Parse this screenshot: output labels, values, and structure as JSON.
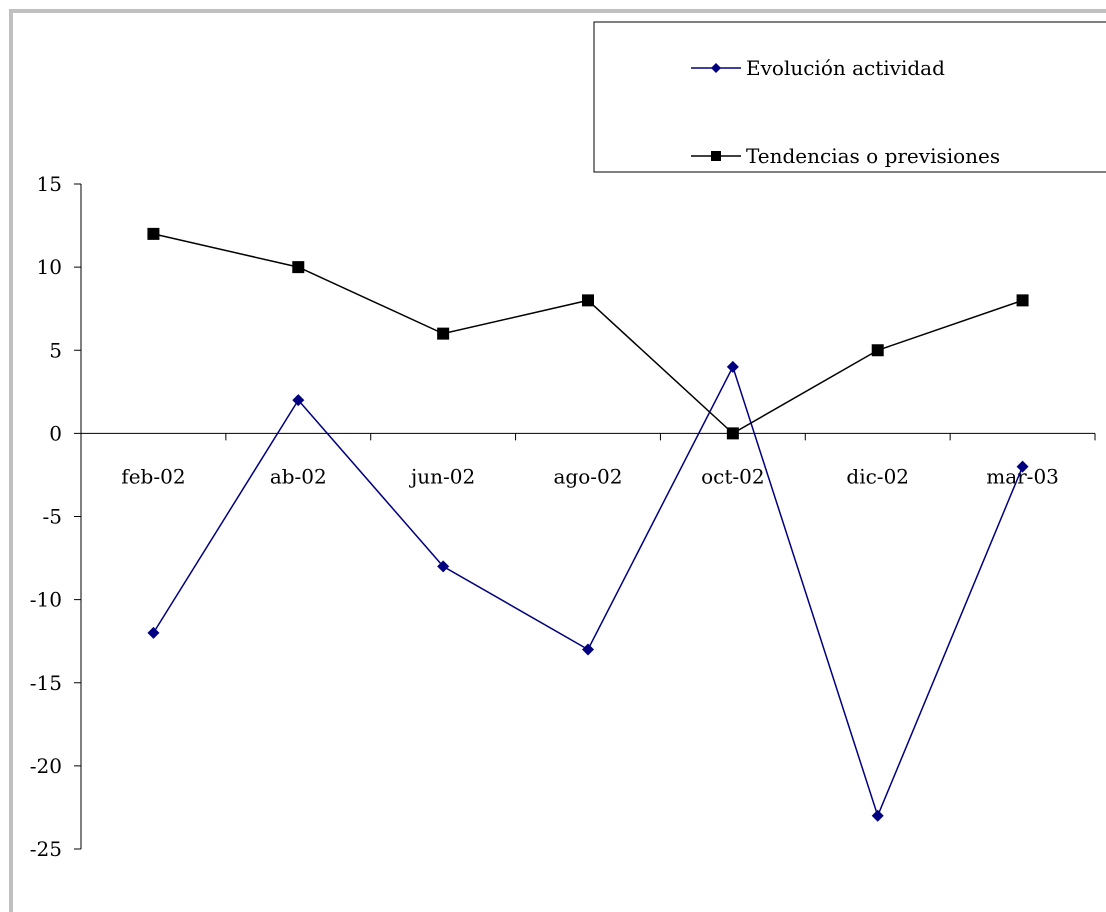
{
  "chart_data": {
    "type": "line",
    "title": "",
    "xlabel": "",
    "ylabel": "",
    "categories": [
      "feb-02",
      "ab-02",
      "jun-02",
      "ago-02",
      "oct-02",
      "dic-02",
      "mar-03"
    ],
    "y_ticks": [
      "15",
      "10",
      "5",
      "0",
      "-5",
      "-10",
      "-15",
      "-20",
      "-25"
    ],
    "ylim": [
      -25,
      15
    ],
    "grid": false,
    "legend_position": "top-right",
    "series": [
      {
        "name": "Evolución actividad",
        "values": [
          -12,
          2,
          -8,
          -13,
          4,
          -23,
          -2
        ],
        "color": "#000080",
        "marker": "diamond"
      },
      {
        "name": "Tendencias o previsiones",
        "values": [
          12,
          10,
          6,
          8,
          0,
          5,
          8
        ],
        "color": "#000000",
        "marker": "square"
      }
    ]
  }
}
